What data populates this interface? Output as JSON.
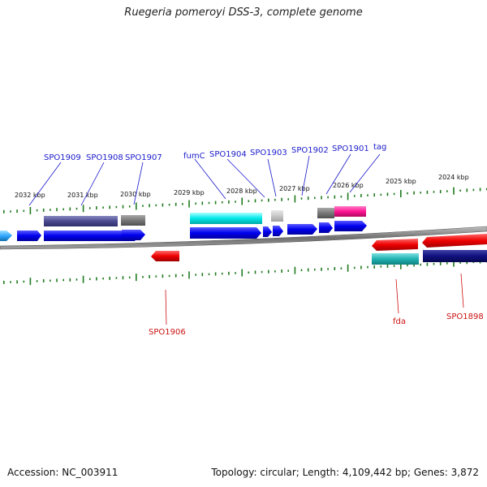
{
  "title": "Ruegeria pomeroyi DSS-3, complete genome",
  "footer": {
    "accession": "Accession: NC_003911",
    "info": "Topology: circular; Length: 4,109,442 bp; Genes: 3,872"
  },
  "colors": {
    "forward_label": "#1a1acc",
    "reverse_label": "#cc1111",
    "tick": "#1f7a1f",
    "backbone": "#808080"
  },
  "scale_labels": [
    "2032 kbp",
    "2031 kbp",
    "2030 kbp",
    "2029 kbp",
    "2028 kbp",
    "2027 kbp",
    "2026 kbp",
    "2025 kbp",
    "2024 kbp"
  ],
  "forward_gene_labels": [
    "SPO1909",
    "SPO1908",
    "SPO1907",
    "fumC",
    "SPO1904",
    "SPO1903",
    "SPO1902",
    "SPO1901",
    "tag"
  ],
  "reverse_gene_labels": [
    "SPO1906",
    "fda",
    "SPO1898"
  ]
}
